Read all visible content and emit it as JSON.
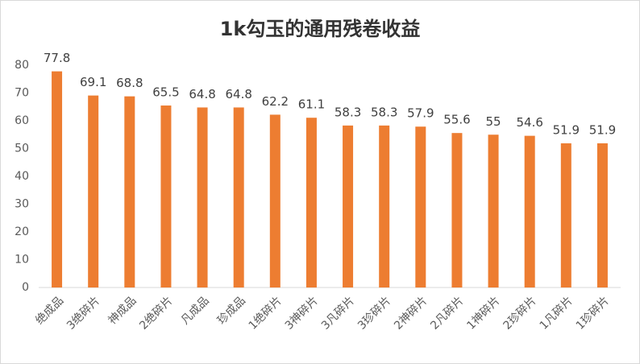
{
  "chart_data": {
    "type": "bar",
    "title": "1k勾玉的通用残卷收益",
    "categories": [
      "绝成品",
      "3绝碎片",
      "神成品",
      "2绝碎片",
      "凡成品",
      "珍成品",
      "1绝碎片",
      "3神碎片",
      "3凡碎片",
      "3珍碎片",
      "2神碎片",
      "2凡碎片",
      "1神碎片",
      "2珍碎片",
      "1凡碎片",
      "1珍碎片"
    ],
    "values": [
      77.8,
      69.1,
      68.8,
      65.5,
      64.8,
      64.8,
      62.2,
      61.1,
      58.3,
      58.3,
      57.9,
      55.6,
      55,
      54.6,
      51.9,
      51.9
    ],
    "color": "#ed7d31",
    "ylim": [
      0,
      80
    ],
    "yticks": [
      0,
      10,
      20,
      30,
      40,
      50,
      60,
      70,
      80
    ],
    "grid": false
  }
}
